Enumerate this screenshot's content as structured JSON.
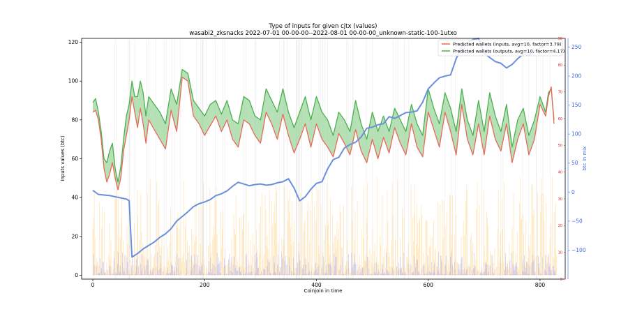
{
  "chart_data": {
    "type": "line",
    "title": "Type of inputs for given cjtx (values)",
    "subtitle": "wasabi2_zksnacks 2022-07-01 00-00-00--2022-08-01 00-00-00_unknown-static-100-1utxo",
    "xlabel": "Coinjoin in time",
    "ylabel": "Inputs values (btc)",
    "y2label": "btc in mix",
    "xlim": [
      -20,
      845
    ],
    "ylim": [
      -2,
      122
    ],
    "y2lim": [
      -150,
      265
    ],
    "y_red_lim": [
      0,
      90
    ],
    "xticks": [
      "0",
      "200",
      "400",
      "600",
      "800"
    ],
    "yticks": [
      "0",
      "20",
      "40",
      "60",
      "80",
      "100",
      "120"
    ],
    "y2ticks": [
      "250",
      "200",
      "150",
      "100",
      "50",
      "0",
      "−50",
      "−100"
    ],
    "y_red_ticks": [
      "90",
      "80",
      "70",
      "60",
      "50",
      "40",
      "30",
      "20",
      "10",
      "0"
    ],
    "legend_position": "top-right",
    "colors": {
      "inputs": "#e8695a",
      "outputs": "#4caf50",
      "fill": "#8fd18f",
      "mix": "#6a8fdc",
      "bars_yellow": "#ffd27f",
      "bars_blue": "#8080ff"
    },
    "series": [
      {
        "name": "Predicted wallets (inputs, avg=10, factor=3.79)",
        "x": [
          0,
          5,
          10,
          15,
          20,
          25,
          30,
          35,
          40,
          45,
          50,
          55,
          60,
          65,
          70,
          75,
          80,
          85,
          90,
          95,
          100,
          110,
          120,
          130,
          140,
          150,
          160,
          170,
          180,
          190,
          200,
          210,
          220,
          230,
          240,
          250,
          260,
          270,
          280,
          290,
          300,
          310,
          320,
          330,
          340,
          350,
          360,
          370,
          380,
          390,
          400,
          410,
          420,
          430,
          440,
          450,
          460,
          470,
          480,
          490,
          500,
          510,
          520,
          530,
          540,
          550,
          560,
          570,
          580,
          590,
          600,
          610,
          620,
          630,
          640,
          650,
          660,
          670,
          680,
          690,
          700,
          710,
          720,
          730,
          740,
          750,
          760,
          770,
          780,
          790,
          800,
          810,
          815,
          820,
          825
        ],
        "values": [
          84,
          85,
          80,
          70,
          55,
          48,
          52,
          58,
          50,
          44,
          50,
          64,
          72,
          80,
          92,
          84,
          76,
          86,
          78,
          68,
          80,
          75,
          70,
          65,
          85,
          74,
          102,
          100,
          82,
          78,
          72,
          77,
          82,
          74,
          80,
          70,
          66,
          80,
          78,
          72,
          68,
          84,
          78,
          70,
          83,
          72,
          63,
          70,
          78,
          66,
          78,
          70,
          66,
          61,
          73,
          68,
          62,
          75,
          64,
          58,
          70,
          60,
          71,
          63,
          76,
          68,
          62,
          78,
          66,
          61,
          84,
          75,
          66,
          84,
          74,
          62,
          88,
          70,
          62,
          78,
          62,
          82,
          70,
          64,
          78,
          58,
          70,
          78,
          62,
          70,
          88,
          82,
          92,
          97,
          78
        ]
      },
      {
        "name": "Predicted wallets (outputs, avg=10, factor=4.17)",
        "x": [
          0,
          5,
          10,
          15,
          20,
          25,
          30,
          35,
          40,
          45,
          50,
          55,
          60,
          65,
          70,
          75,
          80,
          85,
          90,
          95,
          100,
          110,
          120,
          130,
          140,
          150,
          160,
          170,
          180,
          190,
          200,
          210,
          220,
          230,
          240,
          250,
          260,
          270,
          280,
          290,
          300,
          310,
          320,
          330,
          340,
          350,
          360,
          370,
          380,
          390,
          400,
          410,
          420,
          430,
          440,
          450,
          460,
          470,
          480,
          490,
          500,
          510,
          520,
          530,
          540,
          550,
          560,
          570,
          580,
          590,
          600,
          610,
          620,
          630,
          640,
          650,
          660,
          670,
          680,
          690,
          700,
          710,
          720,
          730,
          740,
          750,
          760,
          770,
          780,
          790,
          800,
          810,
          815,
          820,
          825
        ],
        "values": [
          89,
          91,
          84,
          74,
          60,
          58,
          64,
          68,
          55,
          48,
          56,
          70,
          82,
          88,
          100,
          92,
          92,
          100,
          94,
          82,
          92,
          88,
          84,
          78,
          96,
          88,
          106,
          104,
          90,
          86,
          82,
          88,
          90,
          83,
          90,
          80,
          78,
          92,
          90,
          82,
          80,
          96,
          90,
          84,
          96,
          84,
          76,
          84,
          92,
          80,
          92,
          84,
          80,
          72,
          84,
          80,
          74,
          90,
          78,
          70,
          84,
          74,
          82,
          74,
          86,
          80,
          74,
          88,
          78,
          72,
          96,
          86,
          78,
          94,
          86,
          74,
          96,
          80,
          72,
          90,
          74,
          94,
          82,
          74,
          88,
          66,
          80,
          86,
          72,
          80,
          92,
          84,
          94,
          96,
          80
        ]
      },
      {
        "name": "",
        "axis": "y2",
        "x": [
          0,
          10,
          20,
          30,
          40,
          50,
          60,
          65,
          70,
          80,
          90,
          100,
          110,
          120,
          130,
          140,
          150,
          160,
          170,
          180,
          190,
          200,
          210,
          220,
          230,
          240,
          250,
          260,
          270,
          280,
          290,
          300,
          310,
          320,
          330,
          340,
          350,
          360,
          370,
          380,
          390,
          400,
          410,
          420,
          430,
          440,
          450,
          460,
          470,
          480,
          490,
          500,
          510,
          520,
          530,
          540,
          550,
          560,
          570,
          580,
          590,
          600,
          610,
          620,
          630,
          640,
          650,
          660,
          670,
          680,
          690,
          700,
          710,
          720,
          730,
          740,
          750,
          760,
          770,
          780,
          790,
          800,
          810,
          815
        ],
        "values": [
          3,
          -4,
          -5,
          -6,
          -8,
          -10,
          -12,
          -15,
          -112,
          -106,
          -98,
          -92,
          -86,
          -78,
          -72,
          -63,
          -50,
          -42,
          -34,
          -25,
          -20,
          -17,
          -13,
          -6,
          -3,
          2,
          10,
          17,
          14,
          11,
          13,
          14,
          12,
          13,
          16,
          18,
          23,
          7,
          -15,
          -8,
          5,
          15,
          18,
          40,
          56,
          60,
          76,
          82,
          86,
          95,
          110,
          112,
          116,
          118,
          130,
          127,
          132,
          137,
          138,
          140,
          155,
          178,
          188,
          197,
          200,
          202,
          230,
          250,
          258,
          263,
          265,
          240,
          232,
          225,
          222,
          214,
          220,
          230,
          238,
          236,
          243,
          248,
          255,
          262
        ]
      }
    ]
  }
}
